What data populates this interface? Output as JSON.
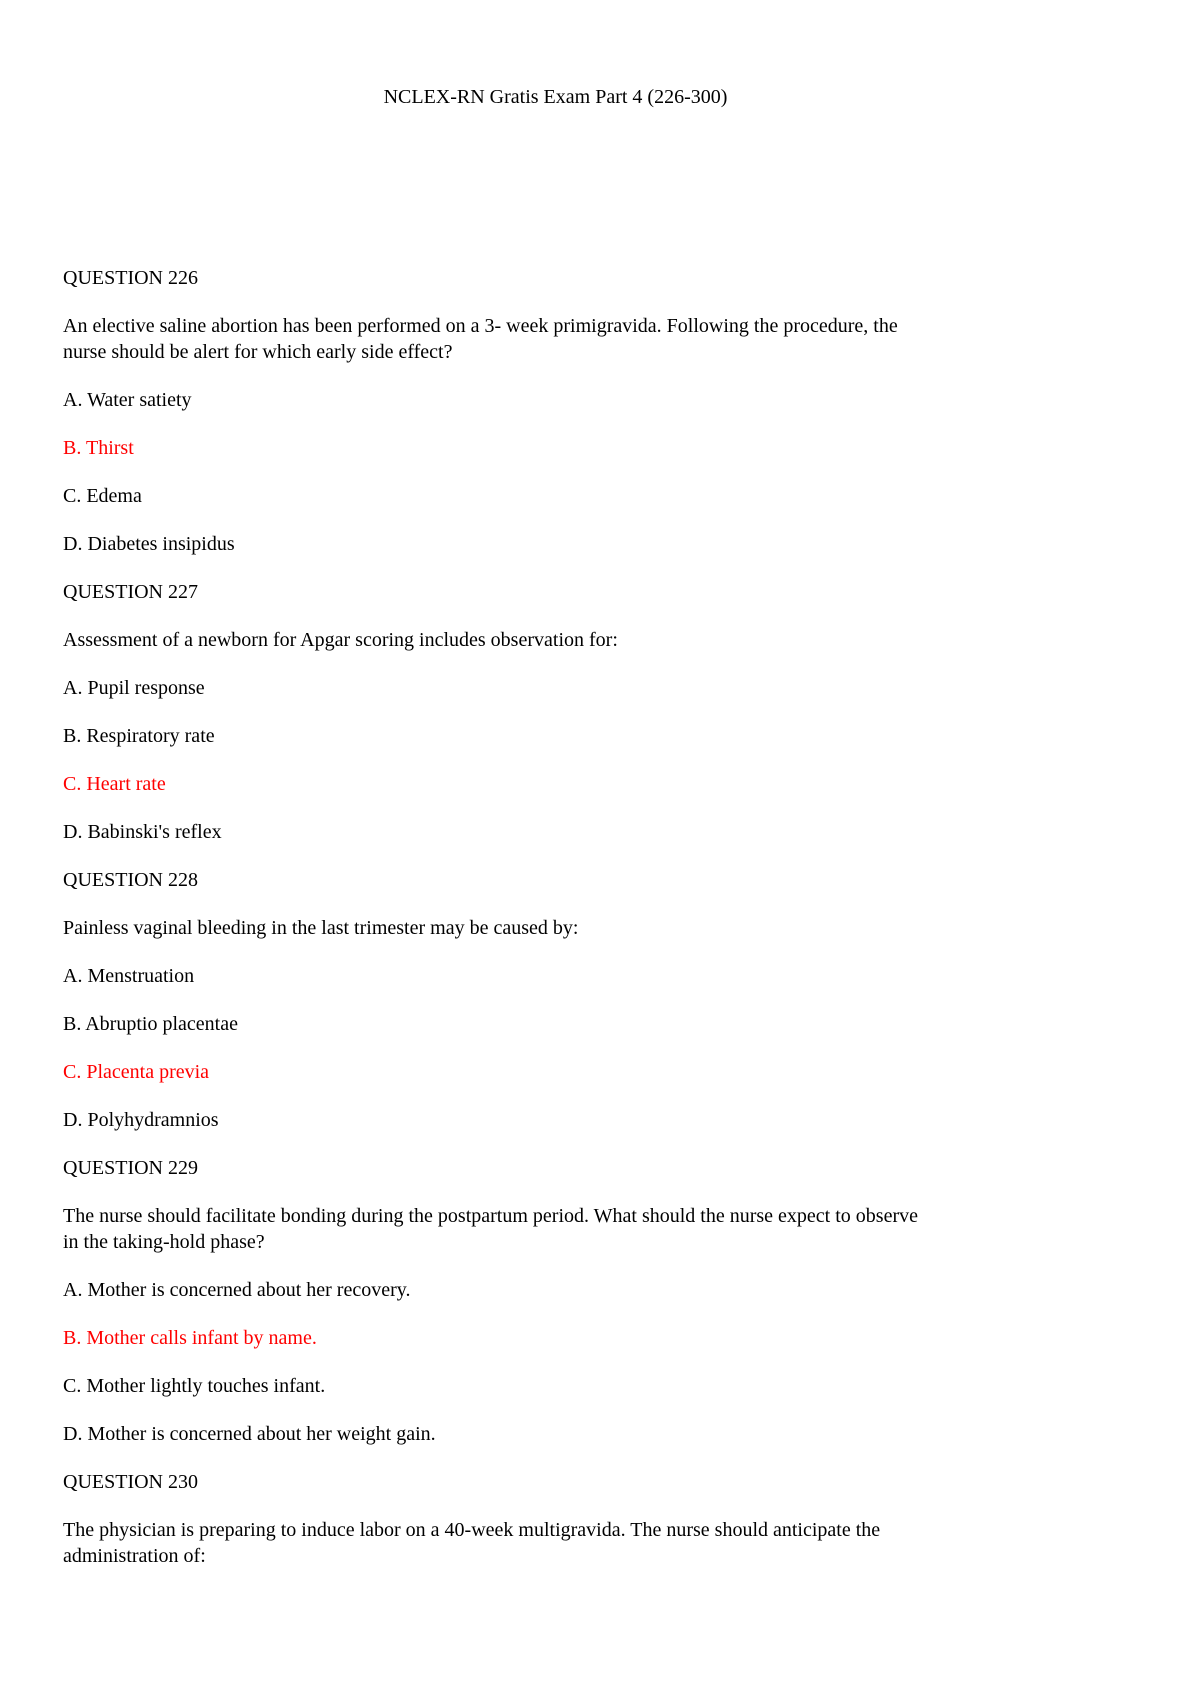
{
  "page": {
    "title": "NCLEX-RN Gratis Exam Part 4 (226-300)"
  },
  "colors": {
    "text": "#000000",
    "background": "#ffffff",
    "answer_highlight": "#ff0000"
  },
  "questions": [
    {
      "heading": "QUESTION 226",
      "text": "An elective saline abortion has been performed on a 3- week primigravida. Following the procedure, the\nnurse should be alert for which early side effect?",
      "options": [
        {
          "label": "A. Water satiety",
          "correct": false
        },
        {
          "label": "B. Thirst",
          "correct": true
        },
        {
          "label": "C. Edema",
          "correct": false
        },
        {
          "label": "D. Diabetes insipidus",
          "correct": false
        }
      ]
    },
    {
      "heading": "QUESTION 227",
      "text": "Assessment of a newborn for Apgar scoring includes observation for:",
      "options": [
        {
          "label": "A. Pupil response",
          "correct": false
        },
        {
          "label": "B. Respiratory rate",
          "correct": false
        },
        {
          "label": "C. Heart rate",
          "correct": true
        },
        {
          "label": "D. Babinski's reflex",
          "correct": false
        }
      ]
    },
    {
      "heading": "QUESTION 228",
      "text": "Painless vaginal bleeding in the last trimester may be caused by:",
      "options": [
        {
          "label": "A. Menstruation",
          "correct": false
        },
        {
          "label": "B. Abruptio placentae",
          "correct": false
        },
        {
          "label": "C. Placenta previa",
          "correct": true
        },
        {
          "label": "D. Polyhydramnios",
          "correct": false
        }
      ]
    },
    {
      "heading": "QUESTION 229",
      "text": "The nurse should facilitate bonding during the postpartum period. What should the nurse expect to observe\nin the taking-hold phase?",
      "options": [
        {
          "label": "A. Mother is concerned about her recovery.",
          "correct": false
        },
        {
          "label": "B. Mother calls infant by name.",
          "correct": true
        },
        {
          "label": "C. Mother lightly touches infant.",
          "correct": false
        },
        {
          "label": "D. Mother is concerned about her weight gain.",
          "correct": false
        }
      ]
    },
    {
      "heading": "QUESTION 230",
      "text": "The physician is preparing to induce labor on a 40-week multigravida. The nurse should anticipate the\nadministration of:",
      "options": []
    }
  ]
}
